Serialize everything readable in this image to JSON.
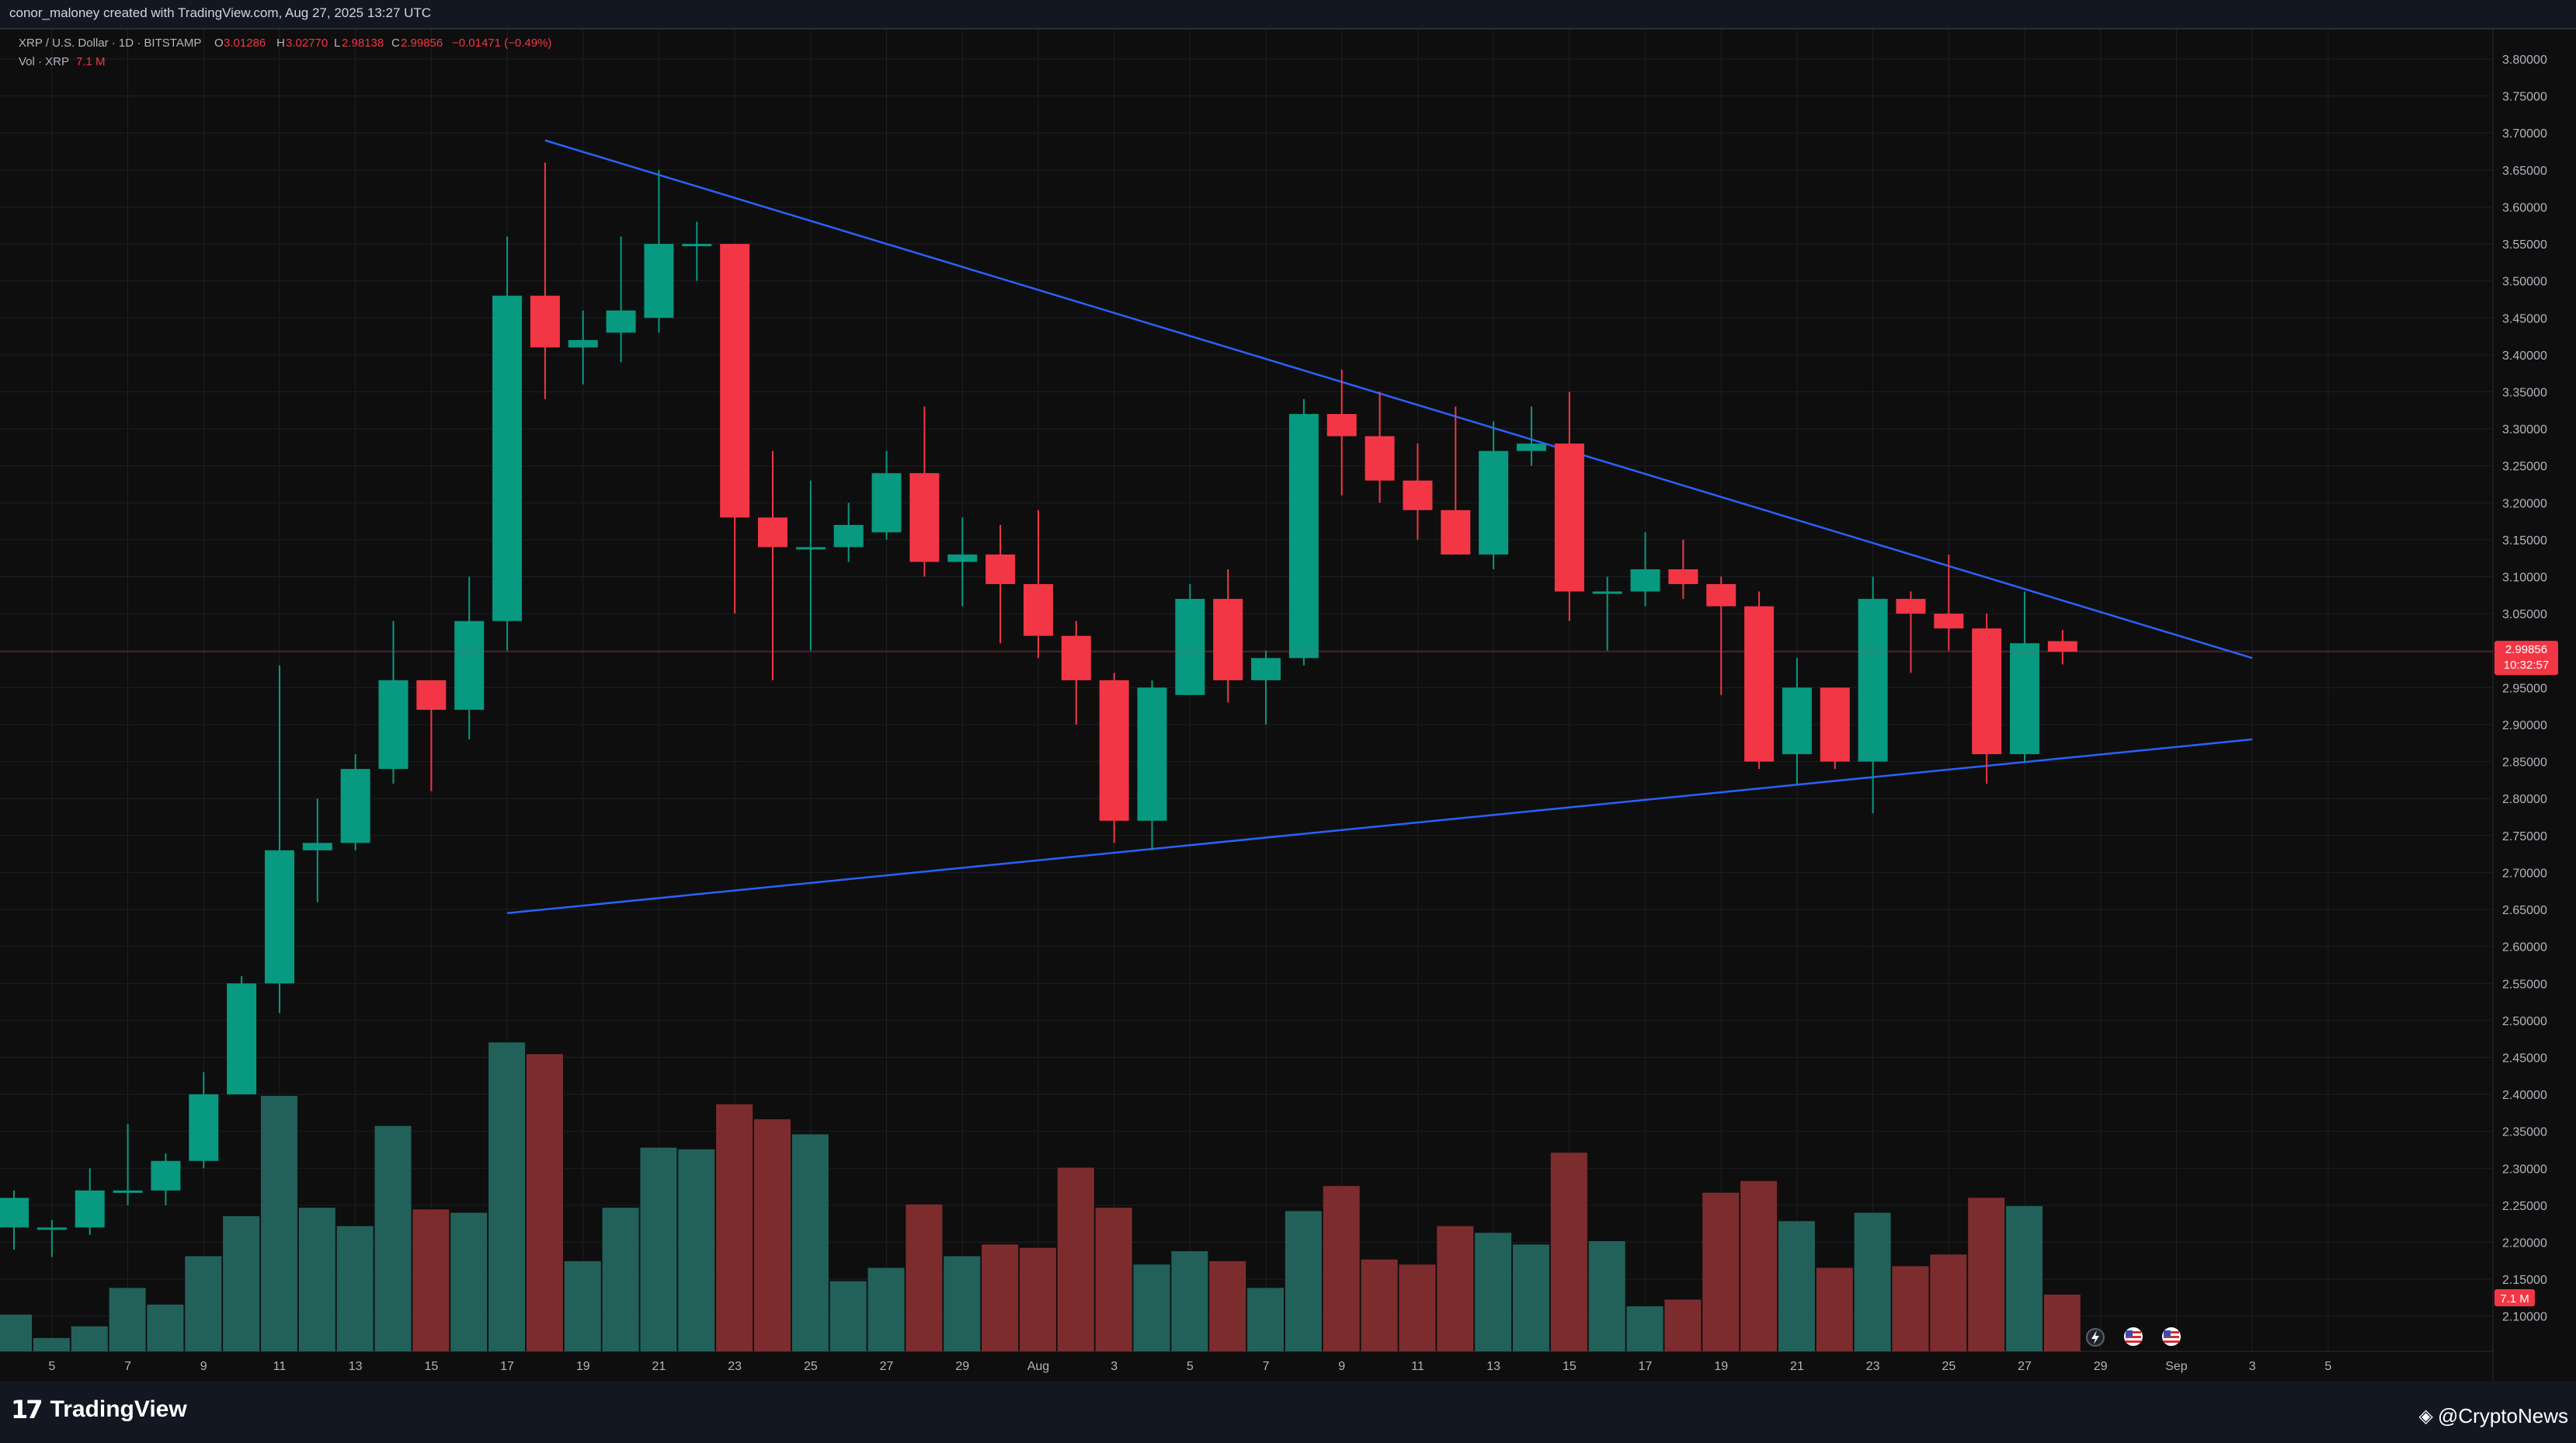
{
  "attribution": "conor_maloney created with TradingView.com, Aug 27, 2025 13:27 UTC",
  "legend": {
    "symbol": "XRP / U.S. Dollar · 1D · BITSTAMP",
    "o_label": "O",
    "o_val": "3.01286",
    "h_label": "H",
    "h_val": "3.02770",
    "l_label": "L",
    "l_val": "2.98138",
    "c_label": "C",
    "c_val": "2.99856",
    "change": "−0.01471 (−0.49%)",
    "vol_label": "Vol · XRP",
    "vol_val": "7.1 M"
  },
  "price_label": {
    "price": "2.99856",
    "countdown": "10:32:57"
  },
  "vol_badge": "7.1 M",
  "footer": {
    "brand": "TradingView",
    "brand_mark": "17",
    "source": "@CryptoNews",
    "source_icon": "diamond-icon"
  },
  "colors": {
    "up": "#089981",
    "down": "#f23645",
    "vol_up": "#22615a",
    "vol_down": "#7d2c2e",
    "trendline": "#2962ff",
    "bg": "#0e0e0e"
  },
  "chart_data": {
    "type": "candlestick",
    "x_ticks": [
      "5",
      "7",
      "9",
      "11",
      "13",
      "15",
      "17",
      "19",
      "21",
      "23",
      "25",
      "27",
      "29",
      "Aug",
      "3",
      "5",
      "7",
      "9",
      "11",
      "13",
      "15",
      "17",
      "19",
      "21",
      "23",
      "25",
      "27",
      "29",
      "Sep",
      "3",
      "5"
    ],
    "y_ticks": [
      "3.80000",
      "3.75000",
      "3.70000",
      "3.65000",
      "3.60000",
      "3.55000",
      "3.50000",
      "3.45000",
      "3.40000",
      "3.35000",
      "3.30000",
      "3.25000",
      "3.20000",
      "3.15000",
      "3.10000",
      "3.05000",
      "3.00000",
      "2.95000",
      "2.90000",
      "2.85000",
      "2.80000",
      "2.75000",
      "2.70000",
      "2.65000",
      "2.60000",
      "2.55000",
      "2.50000",
      "2.45000",
      "2.40000",
      "2.35000",
      "2.30000",
      "2.25000",
      "2.20000",
      "2.15000",
      "2.10000"
    ],
    "y_range": [
      2.08,
      3.82
    ],
    "candles": [
      {
        "date": "Jul 4",
        "o": 2.22,
        "h": 2.27,
        "l": 2.19,
        "c": 2.26
      },
      {
        "date": "Jul 5",
        "o": 2.22,
        "h": 2.23,
        "l": 2.18,
        "c": 2.22
      },
      {
        "date": "Jul 6",
        "o": 2.22,
        "h": 2.3,
        "l": 2.21,
        "c": 2.27
      },
      {
        "date": "Jul 7",
        "o": 2.27,
        "h": 2.36,
        "l": 2.25,
        "c": 2.27
      },
      {
        "date": "Jul 8",
        "o": 2.27,
        "h": 2.32,
        "l": 2.25,
        "c": 2.31
      },
      {
        "date": "Jul 9",
        "o": 2.31,
        "h": 2.43,
        "l": 2.3,
        "c": 2.4
      },
      {
        "date": "Jul 10",
        "o": 2.4,
        "h": 2.56,
        "l": 2.4,
        "c": 2.55
      },
      {
        "date": "Jul 11",
        "o": 2.55,
        "h": 2.98,
        "l": 2.51,
        "c": 2.73
      },
      {
        "date": "Jul 12",
        "o": 2.73,
        "h": 2.8,
        "l": 2.66,
        "c": 2.74
      },
      {
        "date": "Jul 13",
        "o": 2.74,
        "h": 2.86,
        "l": 2.73,
        "c": 2.84
      },
      {
        "date": "Jul 14",
        "o": 2.84,
        "h": 3.04,
        "l": 2.82,
        "c": 2.96
      },
      {
        "date": "Jul 15",
        "o": 2.96,
        "h": 2.96,
        "l": 2.81,
        "c": 2.92
      },
      {
        "date": "Jul 16",
        "o": 2.92,
        "h": 3.1,
        "l": 2.88,
        "c": 3.04
      },
      {
        "date": "Jul 17",
        "o": 3.04,
        "h": 3.56,
        "l": 3.0,
        "c": 3.48
      },
      {
        "date": "Jul 18",
        "o": 3.48,
        "h": 3.66,
        "l": 3.34,
        "c": 3.41
      },
      {
        "date": "Jul 19",
        "o": 3.41,
        "h": 3.46,
        "l": 3.36,
        "c": 3.42
      },
      {
        "date": "Jul 20",
        "o": 3.43,
        "h": 3.56,
        "l": 3.39,
        "c": 3.46
      },
      {
        "date": "Jul 21",
        "o": 3.45,
        "h": 3.65,
        "l": 3.43,
        "c": 3.55
      },
      {
        "date": "Jul 22",
        "o": 3.55,
        "h": 3.58,
        "l": 3.5,
        "c": 3.55
      },
      {
        "date": "Jul 23",
        "o": 3.55,
        "h": 3.55,
        "l": 3.05,
        "c": 3.18
      },
      {
        "date": "Jul 24",
        "o": 3.18,
        "h": 3.27,
        "l": 2.96,
        "c": 3.14
      },
      {
        "date": "Jul 25",
        "o": 3.14,
        "h": 3.23,
        "l": 3.0,
        "c": 3.14
      },
      {
        "date": "Jul 26",
        "o": 3.14,
        "h": 3.2,
        "l": 3.12,
        "c": 3.17
      },
      {
        "date": "Jul 27",
        "o": 3.16,
        "h": 3.27,
        "l": 3.15,
        "c": 3.24
      },
      {
        "date": "Jul 28",
        "o": 3.24,
        "h": 3.33,
        "l": 3.1,
        "c": 3.12
      },
      {
        "date": "Jul 29",
        "o": 3.12,
        "h": 3.18,
        "l": 3.06,
        "c": 3.13
      },
      {
        "date": "Jul 30",
        "o": 3.13,
        "h": 3.17,
        "l": 3.01,
        "c": 3.09
      },
      {
        "date": "Jul 31",
        "o": 3.09,
        "h": 3.19,
        "l": 2.99,
        "c": 3.02
      },
      {
        "date": "Aug 1",
        "o": 3.02,
        "h": 3.04,
        "l": 2.9,
        "c": 2.96
      },
      {
        "date": "Aug 2",
        "o": 2.96,
        "h": 2.97,
        "l": 2.74,
        "c": 2.77
      },
      {
        "date": "Aug 3",
        "o": 2.77,
        "h": 2.96,
        "l": 2.73,
        "c": 2.95
      },
      {
        "date": "Aug 4",
        "o": 2.94,
        "h": 3.09,
        "l": 2.94,
        "c": 3.07
      },
      {
        "date": "Aug 5",
        "o": 3.07,
        "h": 3.11,
        "l": 2.93,
        "c": 2.96
      },
      {
        "date": "Aug 6",
        "o": 2.96,
        "h": 3.0,
        "l": 2.9,
        "c": 2.99
      },
      {
        "date": "Aug 7",
        "o": 2.99,
        "h": 3.34,
        "l": 2.98,
        "c": 3.32
      },
      {
        "date": "Aug 8",
        "o": 3.32,
        "h": 3.38,
        "l": 3.21,
        "c": 3.29
      },
      {
        "date": "Aug 9",
        "o": 3.29,
        "h": 3.35,
        "l": 3.2,
        "c": 3.23
      },
      {
        "date": "Aug 10",
        "o": 3.23,
        "h": 3.28,
        "l": 3.15,
        "c": 3.19
      },
      {
        "date": "Aug 11",
        "o": 3.19,
        "h": 3.33,
        "l": 3.13,
        "c": 3.13
      },
      {
        "date": "Aug 12",
        "o": 3.13,
        "h": 3.31,
        "l": 3.11,
        "c": 3.27
      },
      {
        "date": "Aug 13",
        "o": 3.27,
        "h": 3.33,
        "l": 3.25,
        "c": 3.28
      },
      {
        "date": "Aug 14",
        "o": 3.28,
        "h": 3.35,
        "l": 3.04,
        "c": 3.08
      },
      {
        "date": "Aug 15",
        "o": 3.08,
        "h": 3.1,
        "l": 3.0,
        "c": 3.08
      },
      {
        "date": "Aug 16",
        "o": 3.08,
        "h": 3.16,
        "l": 3.06,
        "c": 3.11
      },
      {
        "date": "Aug 17",
        "o": 3.11,
        "h": 3.15,
        "l": 3.07,
        "c": 3.09
      },
      {
        "date": "Aug 18",
        "o": 3.09,
        "h": 3.1,
        "l": 2.94,
        "c": 3.06
      },
      {
        "date": "Aug 19",
        "o": 3.06,
        "h": 3.08,
        "l": 2.84,
        "c": 2.85
      },
      {
        "date": "Aug 20",
        "o": 2.86,
        "h": 2.99,
        "l": 2.82,
        "c": 2.95
      },
      {
        "date": "Aug 21",
        "o": 2.95,
        "h": 2.95,
        "l": 2.84,
        "c": 2.85
      },
      {
        "date": "Aug 22",
        "o": 2.85,
        "h": 3.1,
        "l": 2.78,
        "c": 3.07
      },
      {
        "date": "Aug 23",
        "o": 3.07,
        "h": 3.08,
        "l": 2.97,
        "c": 3.05
      },
      {
        "date": "Aug 24",
        "o": 3.05,
        "h": 3.13,
        "l": 3.0,
        "c": 3.03
      },
      {
        "date": "Aug 25",
        "o": 3.03,
        "h": 3.05,
        "l": 2.82,
        "c": 2.86
      },
      {
        "date": "Aug 26",
        "o": 2.86,
        "h": 3.08,
        "l": 2.85,
        "c": 3.01
      },
      {
        "date": "Aug 27",
        "o": 3.01286,
        "h": 3.0277,
        "l": 2.98138,
        "c": 2.99856
      }
    ],
    "volume_series": {
      "name": "Vol · XRP",
      "values": [
        0.22,
        0.08,
        0.15,
        0.38,
        0.28,
        0.57,
        0.81,
        1.53,
        0.86,
        0.75,
        1.35,
        0.85,
        0.83,
        1.85,
        1.78,
        0.54,
        0.86,
        1.22,
        1.21,
        1.48,
        1.39,
        1.3,
        0.42,
        0.5,
        0.88,
        0.57,
        0.64,
        0.62,
        1.1,
        0.86,
        0.52,
        0.6,
        0.54,
        0.38,
        0.84,
        0.99,
        0.55,
        0.52,
        0.75,
        0.71,
        0.64,
        1.19,
        0.66,
        0.27,
        0.31,
        0.95,
        1.02,
        0.78,
        0.5,
        0.83,
        0.51,
        0.58,
        0.92,
        0.87,
        0.34
      ],
      "unit": "relative"
    },
    "trendlines": [
      {
        "name": "upper",
        "from": {
          "date": "Jul 18",
          "price": 3.69
        },
        "to": {
          "date": "Sep 1",
          "price": 2.99
        }
      },
      {
        "name": "lower",
        "from": {
          "date": "Jul 17",
          "price": 2.645
        },
        "to": {
          "date": "Sep 1",
          "price": 2.88
        }
      }
    ],
    "last_price": 2.99856
  }
}
